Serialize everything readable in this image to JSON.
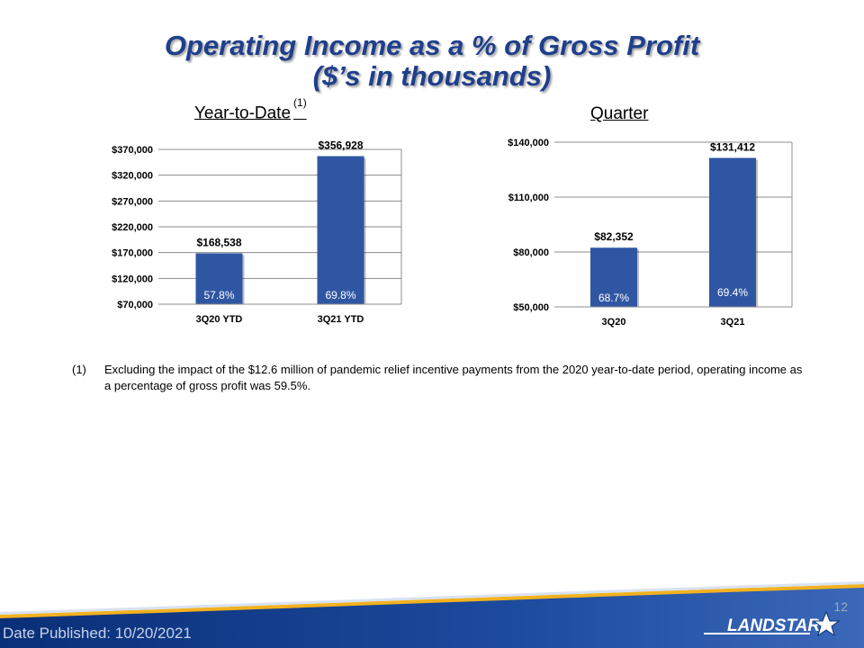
{
  "title": {
    "line1": "Operating Income as a % of Gross Profit",
    "line2": "($’s in thousands)"
  },
  "charts_meta": {
    "ytd_heading": "Year-to-Date",
    "ytd_heading_note": "(1)",
    "quarter_heading": "Quarter"
  },
  "chart_data": [
    {
      "type": "bar",
      "title": "Year-to-Date (1)",
      "categories": [
        "3Q20 YTD",
        "3Q21 YTD"
      ],
      "values": [
        168538,
        356928
      ],
      "value_labels": [
        "$168,538",
        "$356,928"
      ],
      "inner_labels": [
        "57.8%",
        "69.8%"
      ],
      "ylim": [
        70000,
        370000
      ],
      "yticks": [
        70000,
        120000,
        170000,
        220000,
        270000,
        320000,
        370000
      ],
      "ytick_labels": [
        "$70,000",
        "$120,000",
        "$170,000",
        "$220,000",
        "$270,000",
        "$320,000",
        "$370,000"
      ],
      "grid": true,
      "bar_color": "#2f56a3"
    },
    {
      "type": "bar",
      "title": "Quarter",
      "categories": [
        "3Q20",
        "3Q21"
      ],
      "values": [
        82352,
        131412
      ],
      "value_labels": [
        "$82,352",
        "$131,412"
      ],
      "inner_labels": [
        "68.7%",
        "69.4%"
      ],
      "ylim": [
        50000,
        140000
      ],
      "yticks": [
        50000,
        80000,
        110000,
        140000
      ],
      "ytick_labels": [
        "$50,000",
        "$80,000",
        "$110,000",
        "$140,000"
      ],
      "grid": true,
      "bar_color": "#2f56a3"
    }
  ],
  "footnote": {
    "number": "(1)",
    "text": "Excluding the impact of the $12.6 million of pandemic relief incentive payments from the 2020 year-to-date period, operating income as a percentage of gross profit was 59.5%."
  },
  "footer": {
    "page_number": "12",
    "date_published": "Date Published:  10/20/2021",
    "logo_text": "LANDSTAR",
    "colors": {
      "band_dark": "#0a2f78",
      "band_light": "#3b68b8",
      "accent": "#f2b21f"
    }
  }
}
